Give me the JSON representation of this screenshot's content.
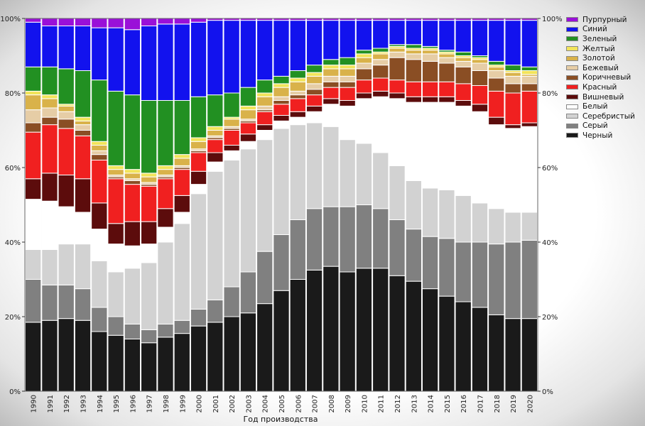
{
  "chart_data": {
    "type": "bar",
    "stacked": true,
    "normalized": true,
    "title": "",
    "xlabel": "Год производства",
    "ylabel": "",
    "ylim": [
      0,
      100
    ],
    "yticks": [
      "0%",
      "20%",
      "40%",
      "60%",
      "80%",
      "100%"
    ],
    "legend_position": "right-outside",
    "categories": [
      "1990",
      "1991",
      "1992",
      "1993",
      "1994",
      "1995",
      "1996",
      "1997",
      "1998",
      "1999",
      "2000",
      "2001",
      "2002",
      "2003",
      "2004",
      "2005",
      "2006",
      "2007",
      "2008",
      "2009",
      "2010",
      "2011",
      "2012",
      "2013",
      "2014",
      "2015",
      "2016",
      "2017",
      "2018",
      "2019",
      "2020"
    ],
    "series": [
      {
        "name": "Черный",
        "color": "#1a1a1a",
        "values": [
          18.5,
          19,
          19.5,
          19,
          16,
          15,
          14,
          13,
          14.5,
          15.5,
          17.5,
          18.5,
          20,
          21,
          23.5,
          27,
          30,
          32.5,
          33.5,
          32,
          33,
          33,
          31,
          29.5,
          27.5,
          25.5,
          24,
          22.5,
          20.5,
          19.5,
          19.5
        ]
      },
      {
        "name": "Серый",
        "color": "#808080",
        "values": [
          11.5,
          9.5,
          9,
          8.5,
          6.5,
          5,
          4,
          3.5,
          3.5,
          3.5,
          4.5,
          6,
          8,
          11,
          14,
          15,
          16,
          16.5,
          16,
          17.5,
          17,
          16,
          15,
          14,
          14,
          15.5,
          16,
          17.5,
          19,
          20.5,
          21
        ]
      },
      {
        "name": "Серебристый",
        "color": "#d2d2d2",
        "values": [
          8,
          9.5,
          11,
          12,
          12.5,
          12,
          15,
          18,
          22,
          26,
          31,
          34.5,
          34,
          33,
          30,
          28.5,
          25.5,
          23,
          21.5,
          18,
          16.5,
          15,
          14.5,
          13,
          13,
          13,
          12.5,
          10.5,
          9.5,
          8,
          7.5
        ]
      },
      {
        "name": "Белый",
        "color": "#ffffff",
        "values": [
          13.5,
          13,
          10,
          8.5,
          8.5,
          7.5,
          6,
          5,
          4,
          3,
          2.5,
          2.5,
          2.5,
          2,
          2.5,
          2,
          2,
          3,
          6,
          9,
          12,
          15,
          18,
          21,
          23,
          23.5,
          24,
          24.5,
          22.5,
          22.5,
          23
        ]
      },
      {
        "name": "Вишневый",
        "color": "#5c0c0c",
        "values": [
          5.5,
          7.5,
          8.5,
          9,
          7,
          5.5,
          6.5,
          6,
          5,
          4.5,
          3.5,
          2.5,
          1.5,
          2,
          1.5,
          1.5,
          1.5,
          1.5,
          1.5,
          1.5,
          1.5,
          1.5,
          1.5,
          1.5,
          1.5,
          1.5,
          1.5,
          2,
          2,
          1,
          1
        ]
      },
      {
        "name": "Красный",
        "color": "#f02020",
        "values": [
          12.5,
          13,
          12.5,
          11.5,
          11.5,
          12,
          10,
          9.5,
          8,
          7,
          5,
          3.5,
          4,
          3,
          3.5,
          3,
          3.5,
          3,
          3,
          3.5,
          3.5,
          3.5,
          3.5,
          4,
          4,
          4,
          4.5,
          5,
          7,
          8.5,
          8.5
        ]
      },
      {
        "name": "Коричневый",
        "color": "#8a4e24",
        "values": [
          2.5,
          2,
          2.5,
          1.5,
          1.5,
          0.5,
          1,
          0.5,
          0.5,
          0.5,
          0.5,
          0.5,
          0.5,
          0.5,
          0.5,
          1,
          1,
          1.5,
          1.5,
          1.5,
          3,
          3.5,
          6,
          6,
          5.5,
          5,
          4.5,
          4,
          3.5,
          2.5,
          2
        ]
      },
      {
        "name": "Бежевый",
        "color": "#e6cda6",
        "values": [
          3.5,
          2.5,
          2,
          1.5,
          1,
          0.5,
          0.5,
          0.5,
          0.5,
          0.5,
          0.5,
          0.5,
          0.5,
          0.5,
          1,
          1,
          1,
          1.5,
          1.5,
          1.5,
          1.5,
          1.5,
          1.5,
          1.5,
          2,
          1.5,
          1.5,
          2,
          2,
          2,
          2
        ]
      },
      {
        "name": "Золотой",
        "color": "#d9b24a",
        "values": [
          4,
          2.5,
          1.5,
          1,
          1.5,
          1.5,
          1.5,
          1.5,
          1.5,
          2,
          2,
          1.5,
          2,
          2.5,
          2.5,
          2.5,
          2.5,
          2,
          2,
          2,
          1.5,
          1.5,
          1,
          1,
          1,
          1,
          1,
          1,
          1,
          1,
          0.5
        ]
      },
      {
        "name": "Желтый",
        "color": "#f2e45a",
        "values": [
          1,
          1,
          0.5,
          1,
          1,
          1,
          1,
          1,
          1,
          1,
          1,
          1,
          0.5,
          1,
          1,
          1,
          1,
          1,
          1,
          1,
          1,
          0.5,
          0.5,
          0.5,
          0.5,
          0.5,
          0.5,
          0.5,
          0.5,
          0.5,
          1
        ]
      },
      {
        "name": "Зеленый",
        "color": "#229022",
        "values": [
          6.5,
          7.5,
          9.5,
          12.5,
          16.5,
          20,
          20,
          19.5,
          17.5,
          14.5,
          11,
          8.5,
          6.5,
          5,
          3.5,
          2,
          2,
          2,
          1.5,
          2,
          1,
          1,
          0.5,
          1,
          0.5,
          0.5,
          1,
          0.5,
          1,
          1.5,
          1
        ]
      },
      {
        "name": "Синий",
        "color": "#1212ee",
        "values": [
          12,
          11,
          11.5,
          12,
          14,
          17,
          17.5,
          20,
          20.5,
          20.5,
          20,
          20,
          19.5,
          18,
          16,
          15,
          13.5,
          12,
          10.5,
          10,
          8,
          7.5,
          6.5,
          6.5,
          7,
          8,
          8.5,
          9.5,
          11,
          12,
          12.5
        ]
      },
      {
        "name": "Пурпурный",
        "color": "#9a10d8",
        "values": [
          1,
          2,
          2,
          2,
          2.5,
          2.5,
          3,
          2,
          1.5,
          1.5,
          1,
          0.5,
          0.5,
          0.5,
          0.5,
          0.5,
          0.5,
          0.5,
          0.5,
          0.5,
          0.5,
          0.5,
          0.5,
          0.5,
          0.5,
          0.5,
          0.5,
          0.5,
          0.5,
          0.5,
          0.5
        ]
      }
    ]
  }
}
